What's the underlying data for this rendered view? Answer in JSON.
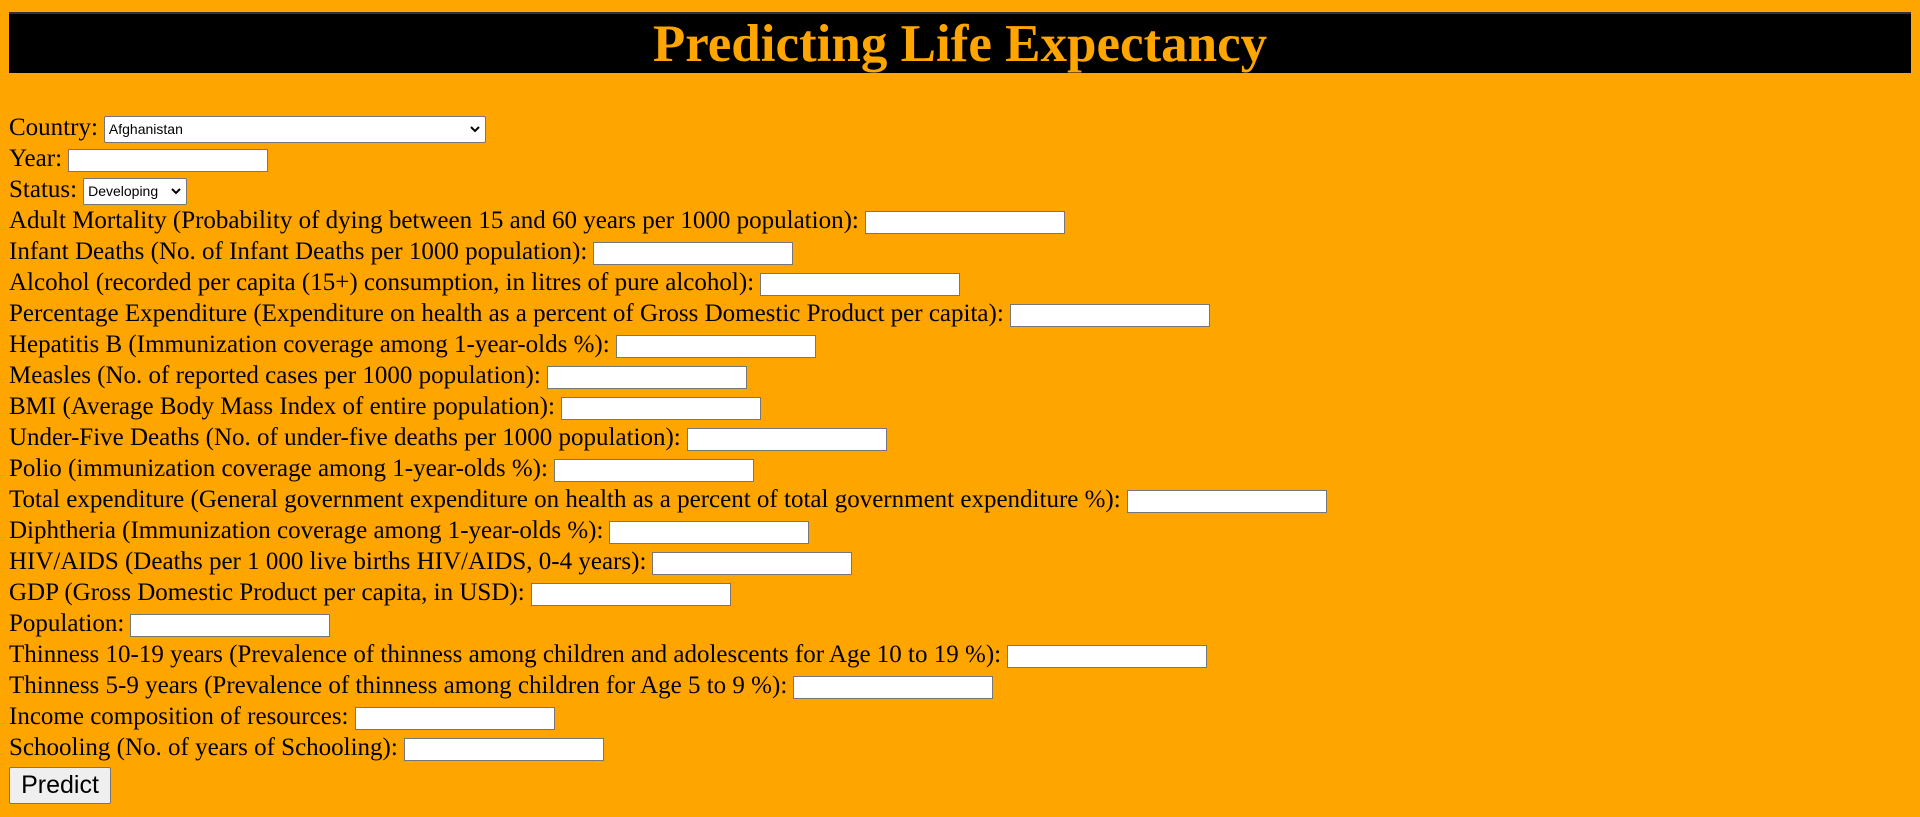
{
  "header": {
    "title": "Predicting Life Expectancy"
  },
  "form": {
    "country": {
      "label": "Country",
      "value": "Afghanistan"
    },
    "year": {
      "label": "Year",
      "value": ""
    },
    "status": {
      "label": "Status",
      "value": "Developing"
    },
    "fields": [
      {
        "label": "Adult Mortality (Probability of dying between 15 and 60 years per 1000 population)",
        "value": ""
      },
      {
        "label": "Infant Deaths (No. of Infant Deaths per 1000 population)",
        "value": ""
      },
      {
        "label": "Alcohol (recorded per capita (15+) consumption, in litres of pure alcohol)",
        "value": ""
      },
      {
        "label": "Percentage Expenditure (Expenditure on health as a percent of Gross Domestic Product per capita)",
        "value": ""
      },
      {
        "label": "Hepatitis B (Immunization coverage among 1-year-olds %)",
        "value": ""
      },
      {
        "label": "Measles (No. of reported cases per 1000 population)",
        "value": ""
      },
      {
        "label": "BMI (Average Body Mass Index of entire population)",
        "value": ""
      },
      {
        "label": "Under-Five Deaths (No. of under-five deaths per 1000 population)",
        "value": ""
      },
      {
        "label": "Polio (immunization coverage among 1-year-olds %)",
        "value": ""
      },
      {
        "label": "Total expenditure (General government expenditure on health as a percent of total government expenditure %)",
        "value": ""
      },
      {
        "label": "Diphtheria (Immunization coverage among 1-year-olds %)",
        "value": ""
      },
      {
        "label": "HIV/AIDS (Deaths per 1 000 live births HIV/AIDS, 0-4 years)",
        "value": ""
      },
      {
        "label": "GDP (Gross Domestic Product per capita, in USD)",
        "value": ""
      },
      {
        "label": "Population",
        "value": ""
      },
      {
        "label": "Thinness 10-19 years (Prevalence of thinness among children and adolescents for Age 10 to 19 %)",
        "value": ""
      },
      {
        "label": "Thinness 5-9 years (Prevalence of thinness among children for Age 5 to 9 %)",
        "value": ""
      },
      {
        "label": "Income composition of resources",
        "value": ""
      },
      {
        "label": "Schooling (No. of years of Schooling)",
        "value": ""
      }
    ],
    "colon": ":",
    "submit_label": "Predict"
  },
  "icons": {
    "dropdown": "chevron-down-icon"
  },
  "colors": {
    "background": "#FFA500",
    "header_bg": "#000000",
    "title_color": "#FFA500"
  }
}
